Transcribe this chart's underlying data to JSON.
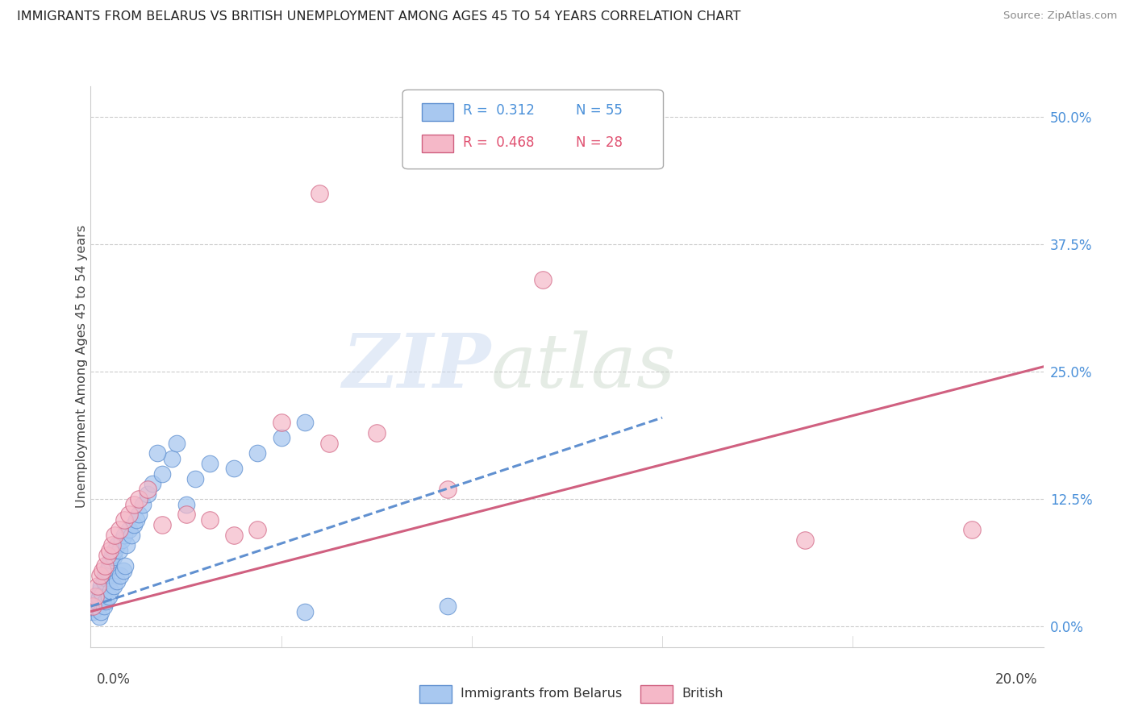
{
  "title": "IMMIGRANTS FROM BELARUS VS BRITISH UNEMPLOYMENT AMONG AGES 45 TO 54 YEARS CORRELATION CHART",
  "source": "Source: ZipAtlas.com",
  "ylabel": "Unemployment Among Ages 45 to 54 years",
  "ytick_values": [
    0.0,
    12.5,
    25.0,
    37.5,
    50.0
  ],
  "xlim": [
    0.0,
    20.0
  ],
  "ylim": [
    -2.0,
    53.0
  ],
  "legend_r1": "R =  0.312",
  "legend_n1": "N = 55",
  "legend_r2": "R =  0.468",
  "legend_n2": "N = 28",
  "color_blue": "#a8c8f0",
  "color_pink": "#f5b8c8",
  "color_blue_edge": "#6090d0",
  "color_pink_edge": "#d06080",
  "color_blue_text": "#4a90d9",
  "color_pink_text": "#e05070",
  "watermark_zip": "ZIP",
  "watermark_atlas": "atlas",
  "blue_scatter_x": [
    0.05,
    0.08,
    0.1,
    0.12,
    0.15,
    0.18,
    0.2,
    0.22,
    0.25,
    0.28,
    0.3,
    0.32,
    0.35,
    0.38,
    0.4,
    0.42,
    0.45,
    0.48,
    0.5,
    0.55,
    0.6,
    0.65,
    0.7,
    0.75,
    0.8,
    0.85,
    0.9,
    0.95,
    1.0,
    1.1,
    1.2,
    1.3,
    1.5,
    1.7,
    1.8,
    2.0,
    2.2,
    2.5,
    3.0,
    3.5,
    4.0,
    4.5,
    1.4,
    0.18,
    0.22,
    0.28,
    0.32,
    0.38,
    0.42,
    0.48,
    0.55,
    0.62,
    0.68,
    0.72,
    7.5
  ],
  "blue_scatter_y": [
    1.5,
    2.0,
    1.8,
    2.5,
    3.0,
    2.8,
    3.5,
    4.0,
    3.2,
    4.5,
    5.0,
    4.8,
    5.5,
    6.0,
    5.8,
    6.5,
    7.0,
    6.8,
    7.5,
    8.0,
    7.5,
    8.5,
    9.0,
    8.0,
    9.5,
    9.0,
    10.0,
    10.5,
    11.0,
    12.0,
    13.0,
    14.0,
    15.0,
    16.5,
    18.0,
    12.0,
    14.5,
    16.0,
    15.5,
    17.0,
    18.5,
    20.0,
    17.0,
    1.0,
    1.5,
    2.0,
    2.5,
    3.0,
    3.5,
    4.0,
    4.5,
    5.0,
    5.5,
    6.0,
    2.0
  ],
  "pink_scatter_x": [
    0.05,
    0.1,
    0.15,
    0.2,
    0.25,
    0.3,
    0.35,
    0.4,
    0.45,
    0.5,
    0.6,
    0.7,
    0.8,
    0.9,
    1.0,
    1.2,
    1.5,
    2.0,
    2.5,
    3.0,
    3.5,
    4.0,
    5.0,
    6.0,
    7.5,
    9.5,
    15.0,
    18.5
  ],
  "pink_scatter_y": [
    2.0,
    3.0,
    4.0,
    5.0,
    5.5,
    6.0,
    7.0,
    7.5,
    8.0,
    9.0,
    9.5,
    10.5,
    11.0,
    12.0,
    12.5,
    13.5,
    10.0,
    11.0,
    10.5,
    9.0,
    9.5,
    20.0,
    18.0,
    19.0,
    13.5,
    34.0,
    8.5,
    9.5
  ],
  "blue_line_x": [
    0.0,
    12.0
  ],
  "blue_line_y": [
    2.0,
    20.5
  ],
  "pink_line_x": [
    0.0,
    20.0
  ],
  "pink_line_y": [
    1.5,
    25.5
  ],
  "pink_outlier_x": 4.8,
  "pink_outlier_y": 42.5,
  "blue_low_x": 4.5,
  "blue_low_y": 1.5
}
